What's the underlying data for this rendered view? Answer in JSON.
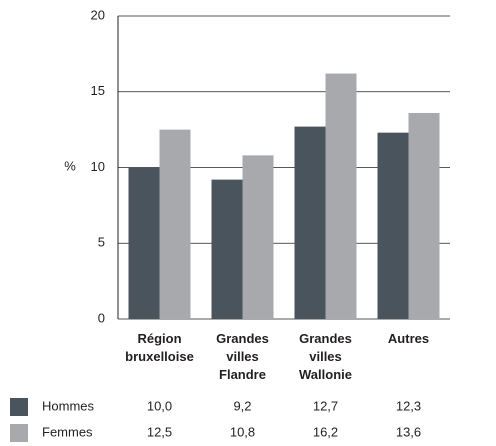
{
  "chart_data": {
    "type": "bar",
    "y_label": "%",
    "categories": [
      "Région bruxelloise",
      "Grandes villes Flandre",
      "Grandes villes Wallonie",
      "Autres"
    ],
    "series": [
      {
        "name": "Hommes",
        "color": "#4a545c",
        "values": [
          10.0,
          9.2,
          12.7,
          12.3
        ],
        "value_labels": [
          "10,0",
          "9,2",
          "12,7",
          "12,3"
        ]
      },
      {
        "name": "Femmes",
        "color": "#a7a9ac",
        "values": [
          12.5,
          10.8,
          16.2,
          13.6
        ],
        "value_labels": [
          "12,5",
          "10,8",
          "16,2",
          "13,6"
        ]
      }
    ],
    "ylim": [
      0,
      20
    ],
    "yticks": [
      0,
      5,
      10,
      15,
      20
    ],
    "grid": true
  }
}
